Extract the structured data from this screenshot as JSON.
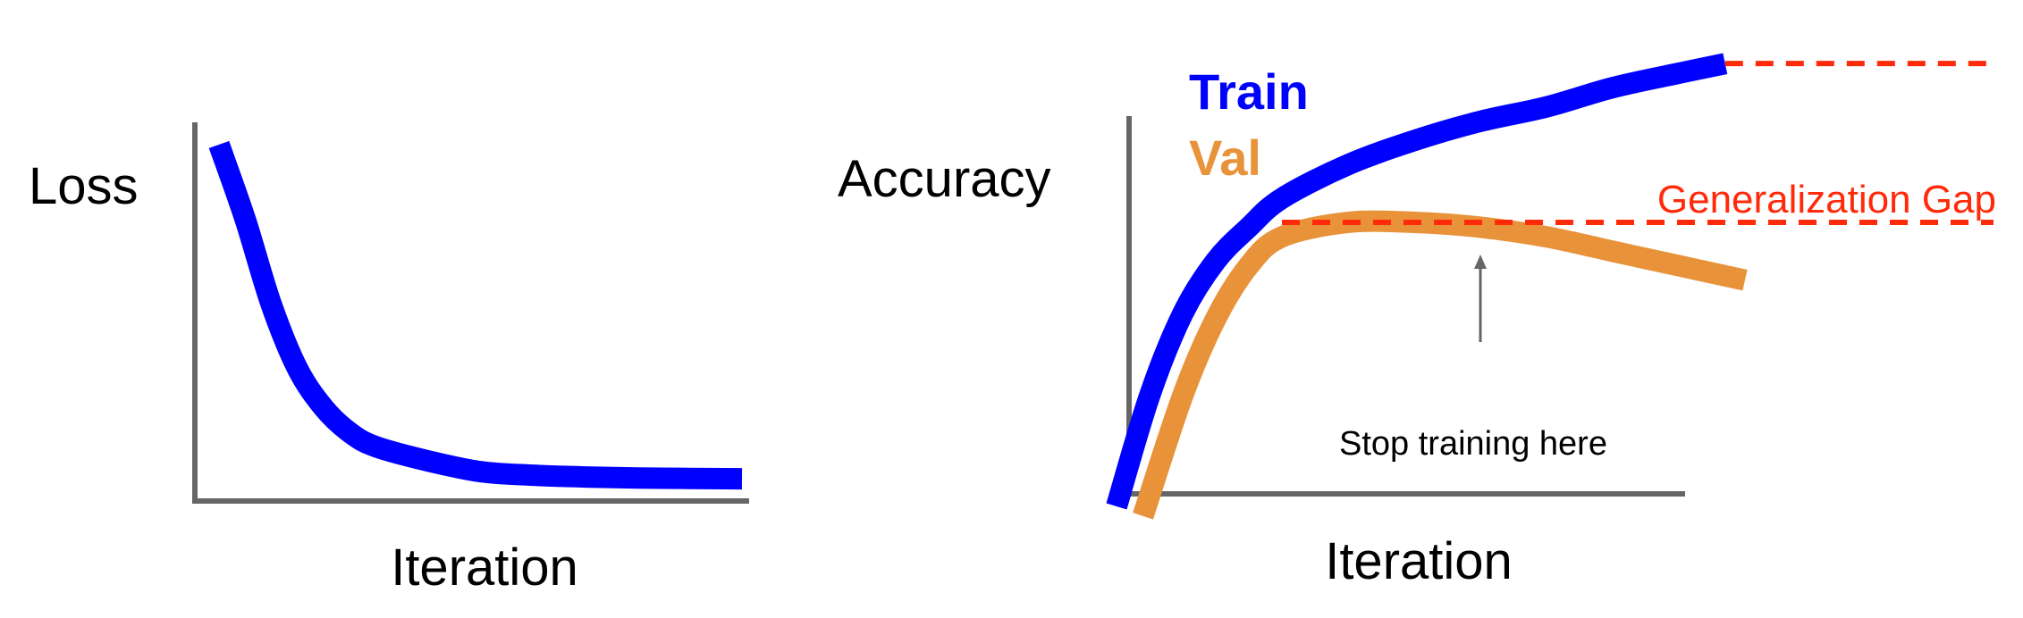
{
  "colors": {
    "train": "#0000ff",
    "val": "#e8923a",
    "gap": "#ff2a0a",
    "axis": "#666666",
    "text": "#000000",
    "arrow": "#666666"
  },
  "chart_data": [
    {
      "type": "line",
      "title": "",
      "xlabel": "Iteration",
      "ylabel": "Loss",
      "ticks": false,
      "grid": false,
      "xlim": [
        0,
        100
      ],
      "ylim": [
        0,
        100
      ],
      "series": [
        {
          "name": "",
          "color": "#0000ff",
          "x": [
            0,
            5,
            10,
            15,
            20,
            25,
            30,
            40,
            50,
            60,
            70,
            80,
            90,
            100
          ],
          "y": [
            97,
            76,
            52,
            34,
            23,
            16,
            12,
            8,
            5,
            4,
            3.5,
            3.2,
            3.1,
            3
          ]
        }
      ]
    },
    {
      "type": "line",
      "title": "",
      "xlabel": "Iteration",
      "ylabel": "Accuracy",
      "ticks": false,
      "grid": false,
      "legend": "top-left",
      "xlim": [
        0,
        100
      ],
      "ylim": [
        0,
        100
      ],
      "series": [
        {
          "name": "Train",
          "color": "#0000ff",
          "x": [
            5,
            10,
            15,
            20,
            25,
            30,
            40,
            50,
            60,
            70,
            80,
            90,
            97
          ],
          "y": [
            5,
            28,
            45,
            56,
            63,
            69,
            76,
            81,
            85,
            88,
            92,
            95,
            97
          ]
        },
        {
          "name": "Val",
          "color": "#e8923a",
          "x": [
            9,
            15,
            20,
            25,
            30,
            40,
            50,
            60,
            70,
            80,
            90,
            100
          ],
          "y": [
            3,
            28,
            44,
            55,
            61,
            64,
            64,
            63,
            61,
            58,
            55,
            52
          ]
        }
      ],
      "annotations": [
        {
          "text": "Generalization Gap",
          "kind": "gap",
          "between": [
            97,
            64
          ]
        },
        {
          "text": "Stop training here",
          "kind": "arrow",
          "x": 60,
          "y": 64
        }
      ]
    }
  ]
}
